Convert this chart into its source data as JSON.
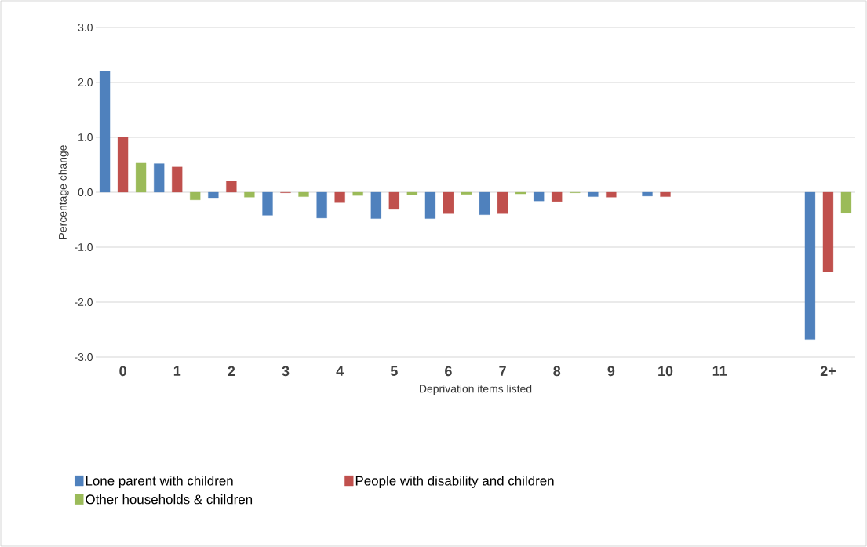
{
  "chart_data": {
    "type": "bar",
    "xlabel": "Deprivation items listed",
    "ylabel": "Percentage change",
    "categories": [
      "0",
      "1",
      "2",
      "3",
      "4",
      "5",
      "6",
      "7",
      "8",
      "9",
      "10",
      "11",
      null,
      "2+"
    ],
    "series": [
      {
        "name": "Lone parent with children",
        "color": "#4f81bd",
        "values": [
          2.2,
          0.52,
          -0.1,
          -0.42,
          -0.47,
          -0.48,
          -0.48,
          -0.41,
          -0.16,
          -0.08,
          -0.07,
          null,
          null,
          -2.68
        ]
      },
      {
        "name": "People with disability and children",
        "color": "#c0504d",
        "values": [
          1.0,
          0.46,
          0.2,
          -0.01,
          -0.19,
          -0.3,
          -0.39,
          -0.39,
          -0.17,
          -0.09,
          -0.08,
          null,
          null,
          -1.45
        ]
      },
      {
        "name": "Other households & children",
        "color": "#9bbb59",
        "values": [
          0.53,
          -0.14,
          -0.09,
          -0.08,
          -0.06,
          -0.05,
          -0.04,
          -0.03,
          -0.01,
          null,
          null,
          null,
          null,
          -0.38
        ]
      }
    ],
    "ylim": [
      -3.0,
      3.0
    ],
    "yticks": [
      {
        "value": -3,
        "label": "-3.0"
      },
      {
        "value": -2,
        "label": "-2.0"
      },
      {
        "value": -1,
        "label": "-1.0"
      },
      {
        "value": 0,
        "label": "0.0"
      },
      {
        "value": 1,
        "label": "1.0"
      },
      {
        "value": 2,
        "label": "2.0"
      },
      {
        "value": 3,
        "label": "3.0"
      }
    ],
    "grid": "y",
    "legend": "bottom"
  }
}
